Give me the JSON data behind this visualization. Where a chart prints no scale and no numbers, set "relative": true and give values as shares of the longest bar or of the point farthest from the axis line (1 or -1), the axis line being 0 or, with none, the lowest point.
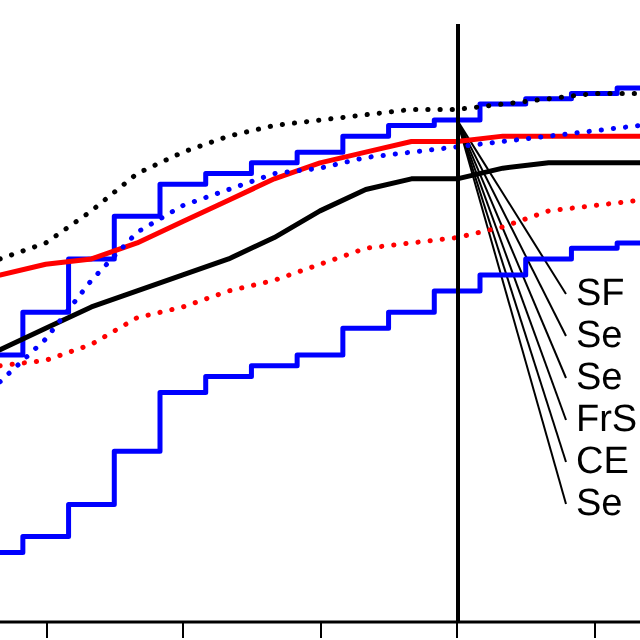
{
  "chart_data": {
    "type": "line",
    "relative": true,
    "categories": [
      null,
      null,
      null,
      null,
      null,
      null,
      null,
      null,
      null,
      null,
      null,
      null,
      null,
      null,
      null
    ],
    "series": [
      {
        "type": "step",
        "line_style": "solid",
        "color": "#0000ff",
        "values": [
          0.5,
          0.58,
          0.68,
          0.76,
          0.82,
          0.84,
          0.86,
          0.88,
          0.91,
          0.93,
          0.94,
          0.97,
          0.98,
          0.99,
          1.0
        ]
      },
      {
        "line_style": "solid",
        "color": "#ff0000",
        "values": [
          0.65,
          0.67,
          0.68,
          0.71,
          0.75,
          0.79,
          0.83,
          0.86,
          0.88,
          0.9,
          0.9,
          0.91,
          0.91,
          0.91,
          0.91
        ]
      },
      {
        "line_style": "solid",
        "color": "#000000",
        "values": [
          0.51,
          0.55,
          0.59,
          0.62,
          0.65,
          0.68,
          0.72,
          0.77,
          0.81,
          0.83,
          0.83,
          0.85,
          0.86,
          0.86,
          0.86
        ]
      },
      {
        "type": "step",
        "line_style": "solid",
        "color": "#0000ff",
        "values": [
          0.13,
          0.16,
          0.22,
          0.32,
          0.43,
          0.46,
          0.48,
          0.5,
          0.55,
          0.58,
          0.62,
          0.65,
          0.68,
          0.7,
          0.71
        ]
      },
      {
        "line_style": "dotted",
        "color": "#000000",
        "values": [
          0.68,
          0.71,
          0.77,
          0.84,
          0.88,
          0.91,
          0.93,
          0.94,
          0.95,
          0.96,
          0.96,
          0.97,
          0.98,
          0.99,
          0.99
        ]
      },
      {
        "line_style": "dotted",
        "color": "#0000ff",
        "values": [
          0.45,
          0.53,
          0.64,
          0.73,
          0.78,
          0.81,
          0.84,
          0.85,
          0.87,
          0.88,
          0.89,
          0.9,
          0.91,
          0.92,
          0.93
        ]
      },
      {
        "line_style": "dotted",
        "color": "#ff0000",
        "values": [
          0.48,
          0.49,
          0.52,
          0.57,
          0.59,
          0.62,
          0.64,
          0.67,
          0.7,
          0.71,
          0.72,
          0.74,
          0.77,
          0.78,
          0.79
        ]
      }
    ],
    "annotations": [
      "SF",
      "Se",
      "Se",
      "FrS",
      "CE",
      "Se"
    ],
    "marker": "none",
    "grid": false,
    "tick_labels": false
  }
}
